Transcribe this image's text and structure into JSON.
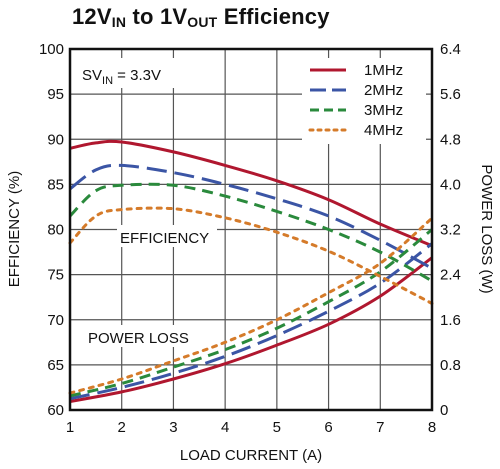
{
  "title": {
    "p1": "12V",
    "sub1": "IN",
    "p2": " to 1V",
    "sub2": "OUT",
    "p3": " Efficiency"
  },
  "chart_data": {
    "type": "line",
    "title": "12VIN to 1VOUT Efficiency",
    "xlabel": "LOAD CURRENT (A)",
    "ylabel": "EFFICIENCY (%)",
    "y2label": "POWER LOSS (W)",
    "xlim": [
      1,
      8
    ],
    "ylim": [
      60,
      100
    ],
    "y2lim": [
      0,
      6.4
    ],
    "xticks": [
      "1",
      "2",
      "3",
      "4",
      "5",
      "6",
      "7",
      "8"
    ],
    "yticks": [
      "60",
      "65",
      "70",
      "75",
      "80",
      "85",
      "90",
      "95",
      "100"
    ],
    "y2ticks": [
      "0",
      "0.8",
      "1.6",
      "2.4",
      "3.2",
      "4.0",
      "4.8",
      "5.6",
      "6.4"
    ],
    "grid": true,
    "legend_position": "top-right",
    "annotations": {
      "condition_pre": "SV",
      "condition_sub": "IN",
      "condition_post": " = 3.3V",
      "efficiency": "EFFICIENCY",
      "power_loss": "POWER LOSS"
    },
    "series": [
      {
        "name": "1MHz",
        "color": "#b0172f",
        "dash": "solid",
        "efficiency": [
          [
            1,
            89.0
          ],
          [
            1.5,
            89.6
          ],
          [
            2,
            89.7
          ],
          [
            3,
            88.6
          ],
          [
            4,
            87.1
          ],
          [
            5,
            85.4
          ],
          [
            6,
            83.3
          ],
          [
            7,
            80.6
          ],
          [
            8,
            78.2
          ]
        ],
        "power_loss": [
          [
            1,
            0.15
          ],
          [
            2,
            0.32
          ],
          [
            3,
            0.55
          ],
          [
            4,
            0.82
          ],
          [
            5,
            1.15
          ],
          [
            6,
            1.52
          ],
          [
            7,
            2.02
          ],
          [
            8,
            2.7
          ]
        ]
      },
      {
        "name": "2MHz",
        "color": "#3b55a5",
        "dash": "long-dash",
        "efficiency": [
          [
            1,
            84.5
          ],
          [
            1.5,
            86.6
          ],
          [
            2,
            87.1
          ],
          [
            3,
            86.3
          ],
          [
            4,
            85.0
          ],
          [
            5,
            83.4
          ],
          [
            6,
            81.5
          ],
          [
            7,
            78.8
          ],
          [
            8,
            75.7
          ]
        ],
        "power_loss": [
          [
            1,
            0.2
          ],
          [
            2,
            0.4
          ],
          [
            3,
            0.65
          ],
          [
            4,
            0.95
          ],
          [
            5,
            1.32
          ],
          [
            6,
            1.75
          ],
          [
            7,
            2.25
          ],
          [
            8,
            2.95
          ]
        ]
      },
      {
        "name": "3MHz",
        "color": "#2a8a3c",
        "dash": "dash",
        "efficiency": [
          [
            1,
            81.5
          ],
          [
            1.5,
            84.3
          ],
          [
            2,
            84.9
          ],
          [
            3,
            84.9
          ],
          [
            4,
            83.7
          ],
          [
            5,
            82.0
          ],
          [
            6,
            80.0
          ],
          [
            7,
            77.5
          ],
          [
            8,
            74.3
          ]
        ],
        "power_loss": [
          [
            1,
            0.25
          ],
          [
            2,
            0.47
          ],
          [
            3,
            0.76
          ],
          [
            4,
            1.07
          ],
          [
            5,
            1.45
          ],
          [
            6,
            1.92
          ],
          [
            7,
            2.45
          ],
          [
            8,
            3.2
          ]
        ]
      },
      {
        "name": "4MHz",
        "color": "#d57b2a",
        "dash": "dot",
        "efficiency": [
          [
            1,
            78.5
          ],
          [
            1.5,
            81.5
          ],
          [
            2,
            82.2
          ],
          [
            3,
            82.3
          ],
          [
            4,
            81.3
          ],
          [
            5,
            79.7
          ],
          [
            6,
            77.6
          ],
          [
            7,
            74.8
          ],
          [
            8,
            71.8
          ]
        ],
        "power_loss": [
          [
            1,
            0.3
          ],
          [
            2,
            0.55
          ],
          [
            3,
            0.87
          ],
          [
            4,
            1.2
          ],
          [
            5,
            1.6
          ],
          [
            6,
            2.08
          ],
          [
            7,
            2.6
          ],
          [
            8,
            3.4
          ]
        ]
      }
    ]
  }
}
